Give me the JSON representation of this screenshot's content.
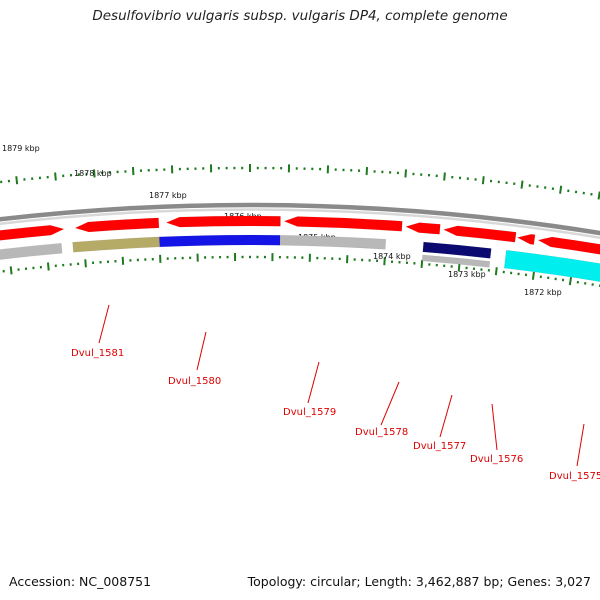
{
  "title": "Desulfovibrio vulgaris subsp. vulgaris DP4, complete genome",
  "footer": {
    "accession": "Accession: NC_008751",
    "topology": "Topology: circular; Length: 3,462,887 bp; Genes: 3,027"
  },
  "colors": {
    "backbone": "#8a8a8a",
    "tick": "#1f7a1f",
    "cds_forward": "#ff0000",
    "label": "#dd0000",
    "gray_feature": "#b8b8b8",
    "olive_feature": "#b5aa66",
    "blue_feature": "#1414e6",
    "navy_feature": "#0a0a70",
    "cyan_feature": "#00eeee"
  },
  "scale_labels": [
    "1879 kbp",
    "1878 kbp",
    "1877 kbp",
    "1876 kbp",
    "1875 kbp",
    "1874 kbp",
    "1873 kbp",
    "1872 kbp"
  ],
  "gene_labels": [
    "Dvul_1581",
    "Dvul_1580",
    "Dvul_1579",
    "Dvul_1578",
    "Dvul_1577",
    "Dvul_1576",
    "Dvul_1575"
  ]
}
